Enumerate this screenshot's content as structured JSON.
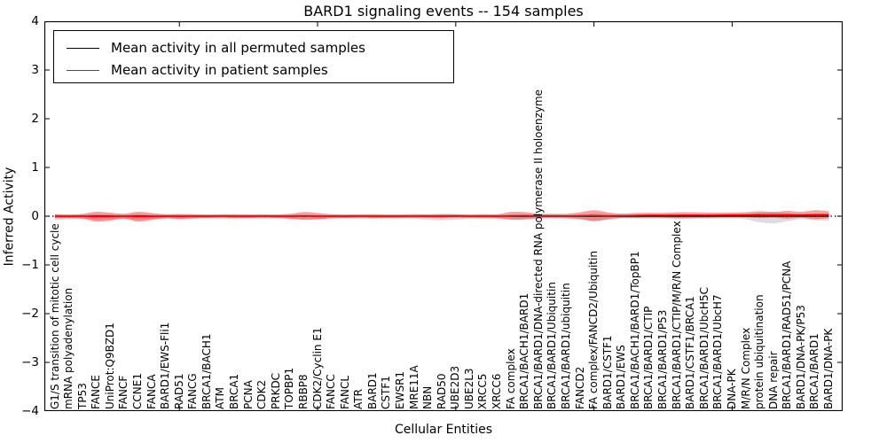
{
  "title": "BARD1 signaling events -- 154 samples",
  "axis": {
    "xlabel": "Cellular Entities",
    "ylabel": "Inferred Activity",
    "ytick_labels": [
      "4",
      "3",
      "2",
      "1",
      "0",
      "−1",
      "−2",
      "−3",
      "−4"
    ],
    "ytick_values": [
      4,
      3,
      2,
      1,
      0,
      -1,
      -2,
      -3,
      -4
    ]
  },
  "legend": {
    "items": [
      {
        "label": "Mean activity in all permuted samples",
        "color": "#000000"
      },
      {
        "label": "Mean activity in patient samples",
        "color": "#ff0000"
      }
    ]
  },
  "colors": {
    "permuted_line": "#000000",
    "patient_line": "#ff0000",
    "permuted_band": "#aaaaaa",
    "patient_band": "#ff0000",
    "spine": "#000000"
  },
  "chart_data": {
    "type": "line",
    "subtype": "violin-strip with mean lines",
    "title": "BARD1 signaling events -- 154 samples",
    "xlabel": "Cellular Entities",
    "ylabel": "Inferred Activity",
    "ylim": [
      -4,
      4
    ],
    "grid": false,
    "zero_line_style": "dotted",
    "legend_position": "upper left",
    "n_entities": 57,
    "categories": [
      "G1/S transition of mitotic cell cycle",
      "mRNA polyadenylation",
      "TP53",
      "FANCE",
      "UniProt:Q9BZD1",
      "FANCF",
      "CCNE1",
      "FANCA",
      "BARD1/EWS-Fli1",
      "RAD51",
      "FANCG",
      "BRCA1/BACH1",
      "ATM",
      "BRCA1",
      "PCNA",
      "CDK2",
      "PRKDC",
      "TOPBP1",
      "RBBP8",
      "CDK2/Cyclin E1",
      "FANCC",
      "FANCL",
      "ATR",
      "BARD1",
      "CSTF1",
      "EWSR1",
      "MRE11A",
      "NBN",
      "RAD50",
      "UBE2D3",
      "UBE2L3",
      "XRCC5",
      "XRCC6",
      "FA complex",
      "BRCA1/BACH1/BARD1",
      "BRCA1/BARD1/DNA-directed RNA polymerase II holoenzyme",
      "BRCA1/BARD1/Ubiquitin",
      "BRCA1/BARD1/ubiquitin",
      "FANCD2",
      "FA complex/FANCD2/Ubiquitin",
      "BARD1/CSTF1",
      "BARD1/EWS",
      "BRCA1/BACH1/BARD1/TopBP1",
      "BRCA1/BARD1/CTIP",
      "BRCA1/BARD1/P53",
      "BRCA1/BARD1/CTIP/M/R/N Complex",
      "BARD1/CSTF1/BRCA1",
      "BRCA1/BARD1/UbcH5C",
      "BRCA1/BARD1/UbcH7",
      "DNA-PK",
      "M/R/N Complex",
      "protein ubiquitination",
      "DNA repair",
      "BRCA1/BARD1/RAD51/PCNA",
      "BARD1/DNA-PK/P53",
      "BRCA1/BARD1",
      "BARD1/DNA-PK"
    ],
    "series": [
      {
        "name": "Mean activity in all permuted samples",
        "role": "permuted",
        "color": "#000000",
        "mean": [
          0,
          0,
          0,
          0,
          0,
          0,
          0,
          0,
          0,
          0,
          0,
          0,
          0,
          0,
          0,
          0,
          0,
          0,
          0,
          0,
          0,
          0,
          0,
          0,
          0,
          0,
          0,
          0,
          0,
          0,
          0,
          0,
          0,
          0,
          0,
          0,
          0,
          0,
          0,
          0,
          0,
          0,
          0,
          0,
          0,
          0,
          0,
          0,
          0,
          0,
          0,
          0,
          0,
          0,
          0,
          0,
          0
        ],
        "spread": [
          0.07,
          0.06,
          0.05,
          0.08,
          0.07,
          0.05,
          0.08,
          0.06,
          0.05,
          0.06,
          0.05,
          0.05,
          0.05,
          0.05,
          0.05,
          0.05,
          0.05,
          0.05,
          0.06,
          0.05,
          0.05,
          0.05,
          0.05,
          0.05,
          0.05,
          0.05,
          0.05,
          0.07,
          0.08,
          0.07,
          0.05,
          0.05,
          0.05,
          0.06,
          0.06,
          0.05,
          0.05,
          0.05,
          0.06,
          0.1,
          0.07,
          0.05,
          0.05,
          0.05,
          0.05,
          0.06,
          0.05,
          0.05,
          0.05,
          0.05,
          0.06,
          0.12,
          0.14,
          0.1,
          0.06,
          0.08,
          0.09
        ]
      },
      {
        "name": "Mean activity in patient samples",
        "role": "patient",
        "color": "#ff0000",
        "mean": [
          0,
          -0.004,
          0,
          -0.01,
          -0.008,
          0,
          -0.01,
          -0.005,
          0,
          -0.004,
          0,
          0,
          0.004,
          0,
          0,
          0.004,
          0,
          0,
          0.005,
          0,
          0,
          0,
          0.004,
          0,
          0,
          0,
          0.004,
          0,
          0,
          0.005,
          0,
          0.004,
          0,
          0.008,
          0.01,
          0.006,
          0.008,
          0.006,
          0.01,
          0.012,
          0.008,
          0.01,
          0.015,
          0.02,
          0.018,
          0.02,
          0.022,
          0.02,
          0.022,
          0.025,
          0.028,
          0.03,
          0.028,
          0.03,
          0.028,
          0.032,
          0.03
        ],
        "spread": [
          0.04,
          0.035,
          0.05,
          0.1,
          0.08,
          0.05,
          0.1,
          0.07,
          0.04,
          0.05,
          0.04,
          0.035,
          0.035,
          0.04,
          0.035,
          0.035,
          0.035,
          0.05,
          0.08,
          0.065,
          0.04,
          0.035,
          0.035,
          0.04,
          0.035,
          0.035,
          0.04,
          0.035,
          0.04,
          0.035,
          0.035,
          0.04,
          0.04,
          0.08,
          0.075,
          0.045,
          0.04,
          0.045,
          0.07,
          0.11,
          0.07,
          0.045,
          0.05,
          0.05,
          0.05,
          0.06,
          0.06,
          0.055,
          0.05,
          0.05,
          0.055,
          0.07,
          0.06,
          0.08,
          0.06,
          0.09,
          0.07
        ]
      }
    ]
  }
}
